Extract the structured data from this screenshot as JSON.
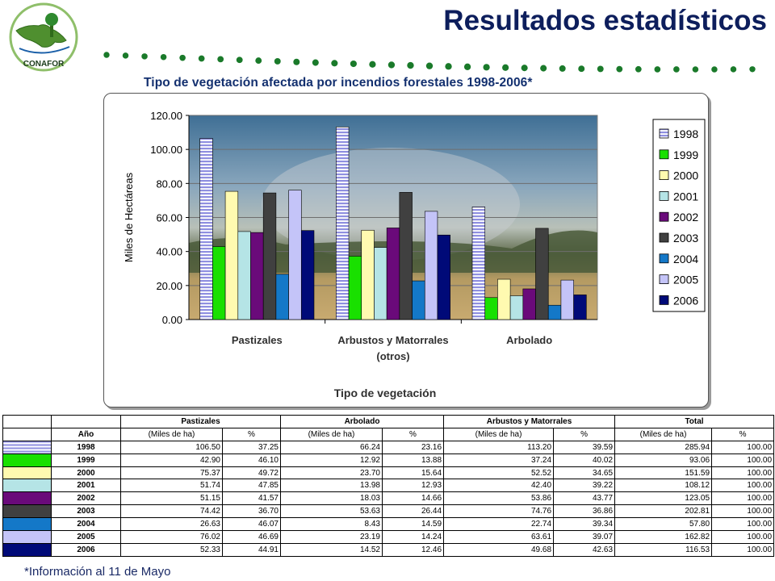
{
  "header": {
    "title": "Resultados estadísticos",
    "logo_text": "CONAFOR",
    "accent_color": "#1a7a2a",
    "title_color": "#0d1e5c"
  },
  "chart_title": "Tipo de vegetación afectada por incendios forestales 1998-2006*",
  "chart_data": {
    "type": "bar",
    "categories": [
      "Pastizales",
      "Arbustos y Matorrales",
      "Arbolado"
    ],
    "category_sublabels": [
      "",
      "(otros)",
      ""
    ],
    "ylabel": "Miles de Hectáreas",
    "xlabel": "Tipo de vegetación",
    "ylim": [
      0,
      120
    ],
    "yticks": [
      "0.00",
      "20.00",
      "40.00",
      "60.00",
      "80.00",
      "100.00",
      "120.00"
    ],
    "legend_position": "right",
    "series": [
      {
        "name": "1998",
        "color": "#8f8fe0",
        "values": [
          106.5,
          113.2,
          66.24
        ]
      },
      {
        "name": "1999",
        "color": "#19e000",
        "values": [
          42.9,
          37.24,
          12.92
        ]
      },
      {
        "name": "2000",
        "color": "#fffab0",
        "values": [
          75.37,
          52.52,
          23.7
        ]
      },
      {
        "name": "2001",
        "color": "#b5e4e6",
        "values": [
          51.74,
          42.4,
          13.98
        ]
      },
      {
        "name": "2002",
        "color": "#6a0a7a",
        "values": [
          51.15,
          53.86,
          18.03
        ]
      },
      {
        "name": "2003",
        "color": "#404040",
        "values": [
          74.42,
          74.76,
          53.63
        ]
      },
      {
        "name": "2004",
        "color": "#1478c8",
        "values": [
          26.63,
          22.74,
          8.43
        ]
      },
      {
        "name": "2005",
        "color": "#c4c4f8",
        "values": [
          76.02,
          63.61,
          23.19
        ]
      },
      {
        "name": "2006",
        "color": "#000a78",
        "values": [
          52.33,
          49.68,
          14.52
        ]
      }
    ]
  },
  "table": {
    "year_header": "Año",
    "groups": [
      "Pastizales",
      "Arbolado",
      "Arbustos y Matorrales",
      "Total"
    ],
    "sub_headers": [
      "(Miles de ha)",
      "%",
      "(Miles de ha)",
      "%",
      "(Miles de ha)",
      "%",
      "(Miles de ha)",
      "%"
    ],
    "rows": [
      {
        "year": "1998",
        "color": "#8f8fe0",
        "cells": [
          "106.50",
          "37.25",
          "66.24",
          "23.16",
          "113.20",
          "39.59",
          "285.94",
          "100.00"
        ]
      },
      {
        "year": "1999",
        "color": "#19e000",
        "cells": [
          "42.90",
          "46.10",
          "12.92",
          "13.88",
          "37.24",
          "40.02",
          "93.06",
          "100.00"
        ]
      },
      {
        "year": "2000",
        "color": "#fffab0",
        "cells": [
          "75.37",
          "49.72",
          "23.70",
          "15.64",
          "52.52",
          "34.65",
          "151.59",
          "100.00"
        ]
      },
      {
        "year": "2001",
        "color": "#b5e4e6",
        "cells": [
          "51.74",
          "47.85",
          "13.98",
          "12.93",
          "42.40",
          "39.22",
          "108.12",
          "100.00"
        ]
      },
      {
        "year": "2002",
        "color": "#6a0a7a",
        "cells": [
          "51.15",
          "41.57",
          "18.03",
          "14.66",
          "53.86",
          "43.77",
          "123.05",
          "100.00"
        ]
      },
      {
        "year": "2003",
        "color": "#404040",
        "cells": [
          "74.42",
          "36.70",
          "53.63",
          "26.44",
          "74.76",
          "36.86",
          "202.81",
          "100.00"
        ]
      },
      {
        "year": "2004",
        "color": "#1478c8",
        "cells": [
          "26.63",
          "46.07",
          "8.43",
          "14.59",
          "22.74",
          "39.34",
          "57.80",
          "100.00"
        ]
      },
      {
        "year": "2005",
        "color": "#c4c4f8",
        "cells": [
          "76.02",
          "46.69",
          "23.19",
          "14.24",
          "63.61",
          "39.07",
          "162.82",
          "100.00"
        ]
      },
      {
        "year": "2006",
        "color": "#000a78",
        "cells": [
          "52.33",
          "44.91",
          "14.52",
          "12.46",
          "49.68",
          "42.63",
          "116.53",
          "100.00"
        ]
      }
    ]
  },
  "footnote": "*Información al 11 de Mayo"
}
